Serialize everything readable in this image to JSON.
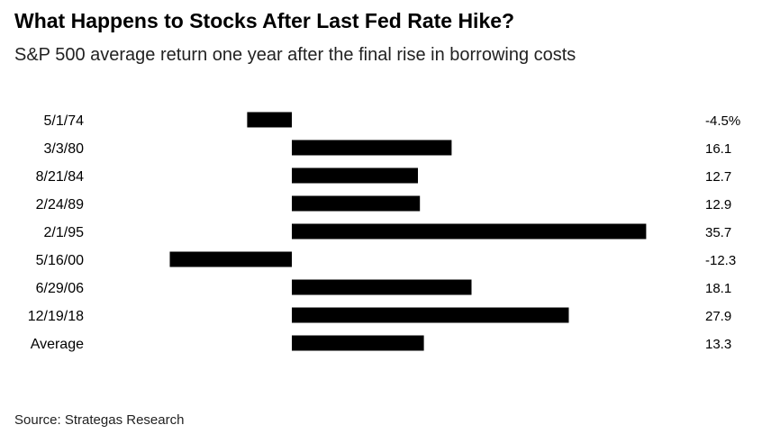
{
  "chart_data": {
    "type": "bar",
    "orientation": "horizontal",
    "title": "What Happens to Stocks After Last Fed Rate Hike?",
    "subtitle": "S&P 500 average return one year after the final rise in borrowing costs",
    "categories": [
      "5/1/74",
      "3/3/80",
      "8/21/84",
      "2/24/89",
      "2/1/95",
      "5/16/00",
      "6/29/06",
      "12/19/18",
      "Average"
    ],
    "values": [
      -4.5,
      16.1,
      12.7,
      12.9,
      35.7,
      -12.3,
      18.1,
      27.9,
      13.3
    ],
    "value_labels": [
      "-4.5%",
      "16.1",
      "12.7",
      "12.9",
      "35.7",
      "-12.3",
      "18.1",
      "27.9",
      "13.3"
    ],
    "bar_color": "#000000",
    "xlim": [
      -12.3,
      35.7
    ],
    "grid": false,
    "legend": "none",
    "source": "Source: Strategas Research"
  }
}
